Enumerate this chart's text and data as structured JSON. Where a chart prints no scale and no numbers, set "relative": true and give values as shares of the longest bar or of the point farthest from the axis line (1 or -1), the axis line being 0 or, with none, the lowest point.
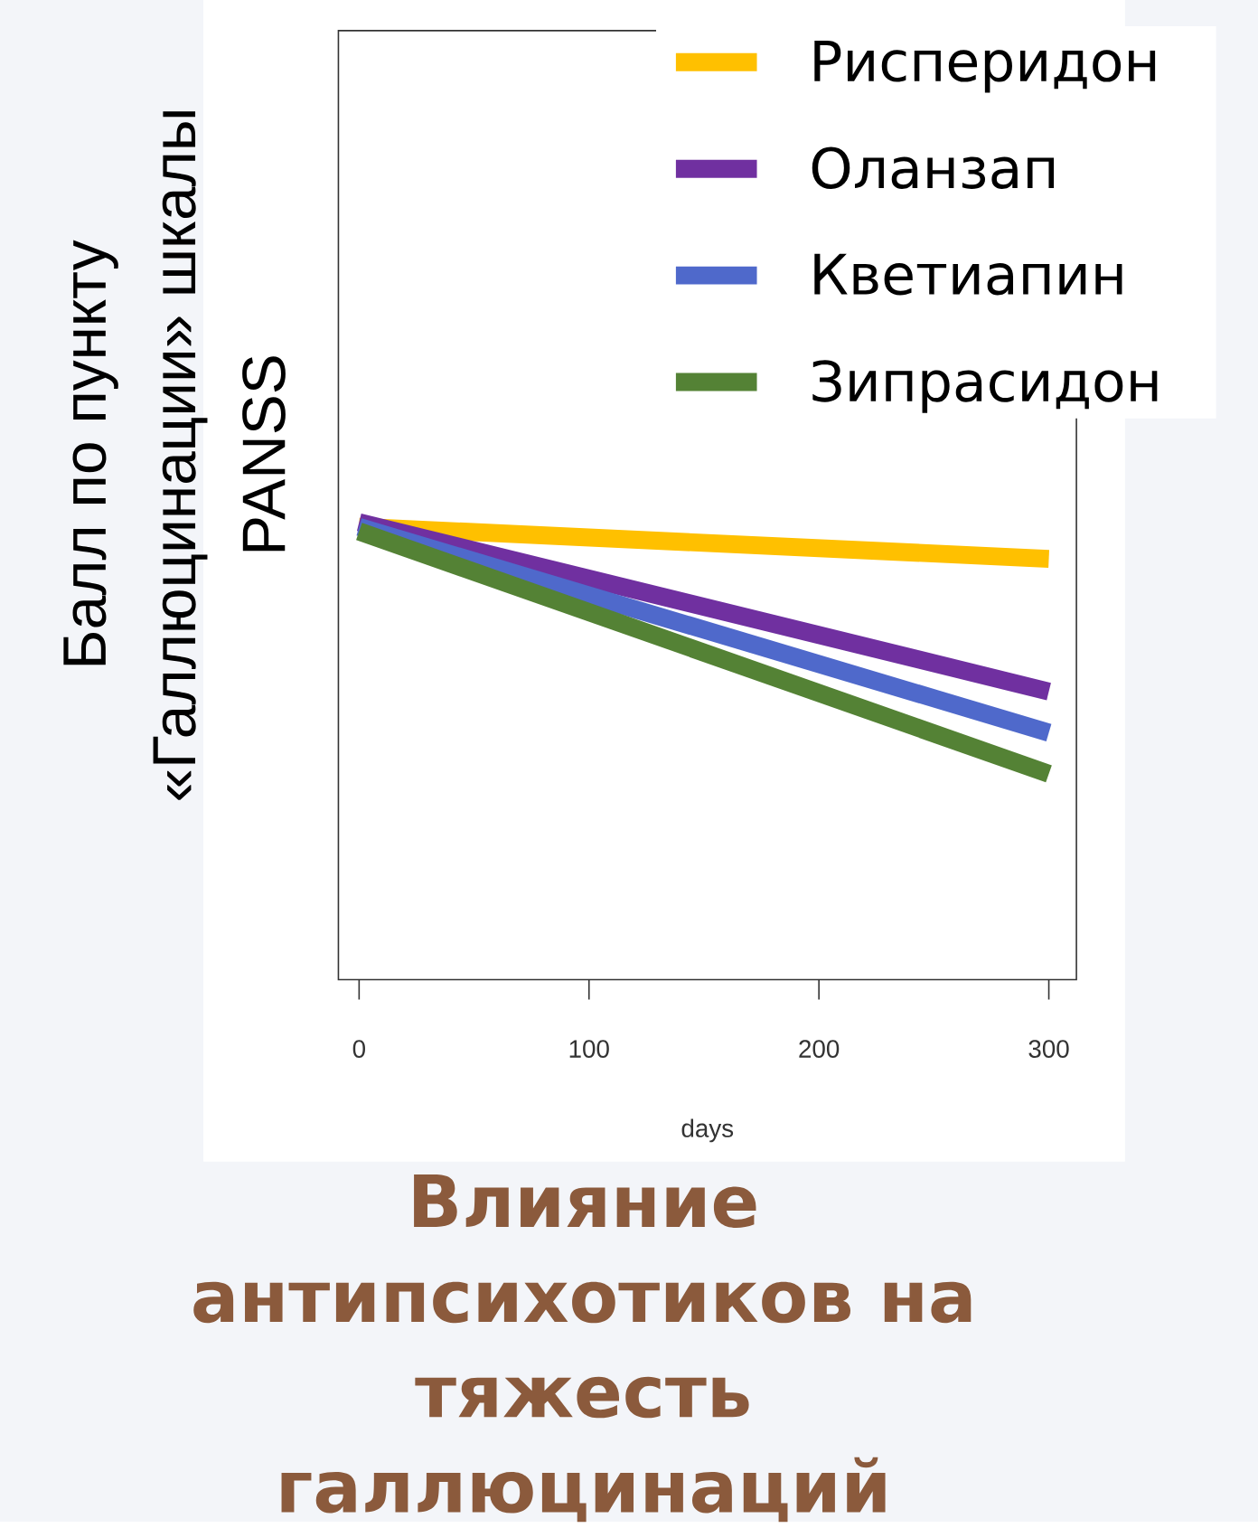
{
  "chart_data": {
    "type": "line",
    "title": "Влияние антипсихотиков на тяжесть галлюцинаций",
    "xlabel": "days",
    "ylabel": "Балл по пункту «Галлюцинации» шкалы PANSS",
    "relative": true,
    "legend": "top right",
    "x": [
      0,
      300
    ],
    "xlim": [
      -9,
      312
    ],
    "xticks": [
      0,
      100,
      200,
      300
    ],
    "series": [
      {
        "name": "Рисперидон",
        "color": "#ffc000",
        "values": [
          0.99,
          0.92
        ]
      },
      {
        "name": "Оланзап",
        "color": "#7030a0",
        "values": [
          1.0,
          0.63
        ]
      },
      {
        "name": "Кветиапин",
        "color": "#4f69cb",
        "values": [
          0.99,
          0.54
        ]
      },
      {
        "name": "Зипрасидон",
        "color": "#548235",
        "values": [
          0.98,
          0.45
        ]
      }
    ]
  }
}
